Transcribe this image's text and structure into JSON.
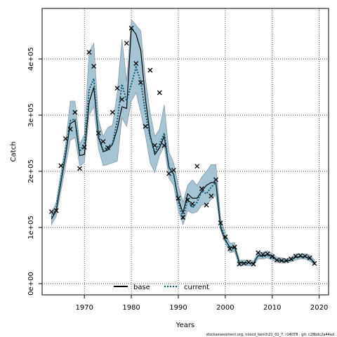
{
  "chart_data": {
    "type": "line",
    "xlabel": "Years",
    "ylabel": "Catch",
    "xlim": [
      1961,
      2022
    ],
    "ylim": [
      -20000,
      490000
    ],
    "x_ticks": [
      1970,
      1980,
      1990,
      2000,
      2010,
      2020
    ],
    "y_ticks": [
      0,
      100000,
      200000,
      300000,
      400000
    ],
    "y_tick_labels": [
      "0e+00",
      "1e+05",
      "2e+05",
      "3e+05",
      "4e+05"
    ],
    "grid": true,
    "legend_position": "bottom-center",
    "band_color": "#a5c4d4",
    "band_edge_color": "#8a9aa6",
    "series": [
      {
        "name": "base",
        "style": "solid",
        "color": "#000000",
        "x": [
          1963,
          1964,
          1965,
          1966,
          1967,
          1968,
          1969,
          1970,
          1971,
          1972,
          1973,
          1974,
          1975,
          1976,
          1977,
          1978,
          1979,
          1980,
          1981,
          1982,
          1983,
          1984,
          1985,
          1986,
          1987,
          1988,
          1989,
          1990,
          1991,
          1992,
          1993,
          1994,
          1995,
          1996,
          1997,
          1998,
          1999,
          2000,
          2001,
          2002,
          2003,
          2004,
          2005,
          2006,
          2007,
          2008,
          2009,
          2010,
          2011,
          2012,
          2013,
          2014,
          2015,
          2016,
          2017,
          2018,
          2019
        ],
        "y": [
          115000,
          130000,
          180000,
          228000,
          285000,
          290000,
          228000,
          230000,
          323000,
          350000,
          260000,
          235000,
          238000,
          248000,
          275000,
          315000,
          312000,
          455000,
          444000,
          415000,
          330000,
          265000,
          230000,
          242000,
          262000,
          207000,
          195000,
          150000,
          126000,
          160000,
          152000,
          152000,
          165000,
          175000,
          180000,
          180000,
          100000,
          77000,
          65000,
          65000,
          38000,
          37000,
          37000,
          36000,
          50000,
          50000,
          52000,
          50000,
          42000,
          41000,
          40000,
          42000,
          47000,
          48000,
          48000,
          45000,
          38000
        ]
      },
      {
        "name": "current",
        "style": "dotted",
        "color": "#0a5a6e",
        "x": [
          1963,
          1964,
          1965,
          1966,
          1967,
          1968,
          1969,
          1970,
          1971,
          1972,
          1973,
          1974,
          1975,
          1976,
          1977,
          1978,
          1979,
          1980,
          1981,
          1982,
          1983,
          1984,
          1985,
          1986,
          1987,
          1988,
          1989,
          1990,
          1991,
          1992,
          1993,
          1994,
          1995,
          1996,
          1997,
          1998,
          1999,
          2000,
          2001,
          2002,
          2003,
          2004,
          2005,
          2006,
          2007,
          2008,
          2009,
          2010,
          2011,
          2012,
          2013,
          2014,
          2015,
          2016,
          2017,
          2018,
          2019
        ],
        "y": [
          118000,
          135000,
          185000,
          235000,
          290000,
          293000,
          235000,
          250000,
          345000,
          365000,
          265000,
          238000,
          244000,
          250000,
          290000,
          355000,
          325000,
          355000,
          385000,
          360000,
          305000,
          260000,
          235000,
          248000,
          268000,
          207000,
          195000,
          145000,
          115000,
          150000,
          135000,
          145000,
          165000,
          160000,
          172000,
          180000,
          105000,
          80000,
          62000,
          65000,
          35000,
          37000,
          36000,
          36000,
          50000,
          48000,
          50000,
          46000,
          42000,
          40000,
          40000,
          42000,
          47000,
          48000,
          48000,
          44000,
          37000
        ]
      }
    ],
    "band": {
      "x": [
        1963,
        1964,
        1965,
        1966,
        1967,
        1968,
        1969,
        1970,
        1971,
        1972,
        1973,
        1974,
        1975,
        1976,
        1977,
        1978,
        1979,
        1980,
        1981,
        1982,
        1983,
        1984,
        1985,
        1986,
        1987,
        1988,
        1989,
        1990,
        1991,
        1992,
        1993,
        1994,
        1995,
        1996,
        1997,
        1998,
        1999,
        2000,
        2001,
        2002,
        2003,
        2004,
        2005,
        2006,
        2007,
        2008,
        2009,
        2010,
        2011,
        2012,
        2013,
        2014,
        2015,
        2016,
        2017,
        2018,
        2019
      ],
      "lower": [
        105000,
        120000,
        165000,
        210000,
        255000,
        260000,
        210000,
        215000,
        300000,
        315000,
        240000,
        210000,
        212000,
        215000,
        218000,
        295000,
        280000,
        325000,
        340000,
        305000,
        265000,
        215000,
        198000,
        228000,
        245000,
        188000,
        175000,
        130000,
        105000,
        130000,
        125000,
        128000,
        140000,
        140000,
        150000,
        158000,
        95000,
        72000,
        55000,
        57000,
        32000,
        33000,
        32000,
        32000,
        44000,
        44000,
        46000,
        42000,
        38000,
        37000,
        37000,
        39000,
        42000,
        44000,
        44000,
        40000,
        34000
      ],
      "upper": [
        125000,
        145000,
        198000,
        248000,
        325000,
        325000,
        248000,
        265000,
        413000,
        428000,
        293000,
        262000,
        278000,
        282000,
        340000,
        435000,
        360000,
        470000,
        460000,
        450000,
        365000,
        305000,
        262000,
        275000,
        318000,
        235000,
        215000,
        175000,
        145000,
        175000,
        185000,
        175000,
        190000,
        200000,
        212000,
        212000,
        115000,
        90000,
        72000,
        73000,
        42000,
        42000,
        42000,
        40000,
        56000,
        56000,
        58000,
        54000,
        47000,
        46000,
        44000,
        47000,
        53000,
        53000,
        53000,
        51000,
        42000
      ]
    },
    "observed": {
      "marker": "x",
      "x": [
        1963,
        1964,
        1965,
        1966,
        1967,
        1968,
        1969,
        1970,
        1971,
        1972,
        1973,
        1974,
        1975,
        1976,
        1977,
        1978,
        1979,
        1980,
        1981,
        1982,
        1983,
        1984,
        1985,
        1986,
        1987,
        1988,
        1989,
        1990,
        1991,
        1992,
        1993,
        1994,
        1995,
        1996,
        1997,
        1998,
        1999,
        2000,
        2001,
        2002,
        2003,
        2004,
        2005,
        2006,
        2007,
        2008,
        2009,
        2010,
        2011,
        2012,
        2013,
        2014,
        2015,
        2016,
        2017,
        2018,
        2019
      ],
      "y": [
        128000,
        130000,
        210000,
        258000,
        275000,
        305000,
        205000,
        243000,
        412000,
        387000,
        268000,
        253000,
        242000,
        305000,
        348000,
        328000,
        428000,
        455000,
        392000,
        358000,
        280000,
        380000,
        246000,
        340000,
        246000,
        196000,
        202000,
        152000,
        118000,
        149000,
        142000,
        209000,
        169000,
        140000,
        156000,
        185000,
        108000,
        83000,
        62000,
        65000,
        35000,
        36000,
        38000,
        35000,
        55000,
        52000,
        53000,
        48000,
        42000,
        41000,
        41000,
        44000,
        49000,
        50000,
        49000,
        46000,
        36000
      ]
    }
  },
  "legend": {
    "base_label": "base",
    "current_label": "current"
  },
  "footnote": "stockassessment.org, noocd_bench21_01_7, r14078 , git: c28bdc2a44ad"
}
